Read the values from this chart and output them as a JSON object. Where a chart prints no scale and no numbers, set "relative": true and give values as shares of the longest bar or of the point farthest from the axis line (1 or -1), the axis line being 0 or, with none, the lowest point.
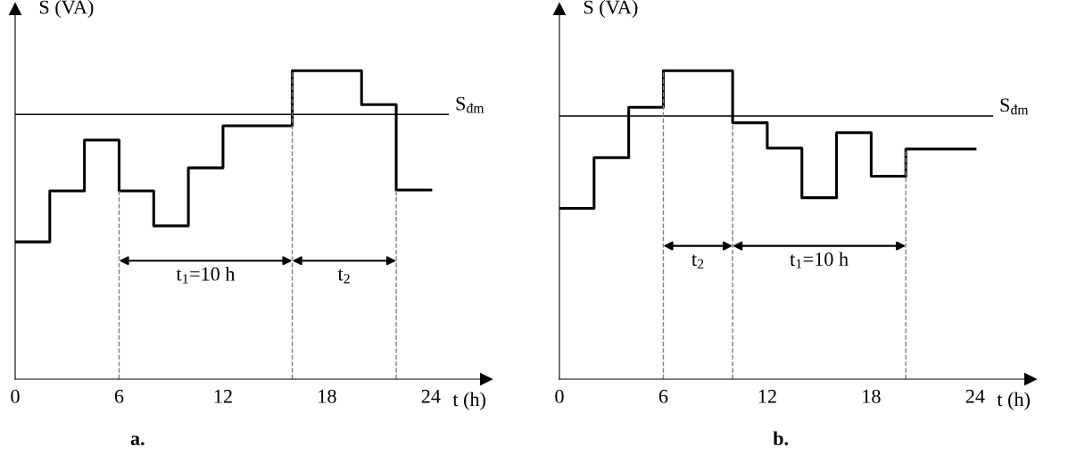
{
  "chart_data": [
    {
      "type": "step",
      "title": "a.",
      "xlabel": "t (h)",
      "ylabel": "S (VA)",
      "relative": true,
      "tick_labels": "x",
      "grid": false,
      "xlim": [
        0,
        27.2
      ],
      "xticks": [
        0,
        6,
        12,
        18,
        24
      ],
      "series": [
        {
          "color": "#000000",
          "x": [
            0,
            2,
            4,
            6,
            8,
            10,
            12,
            16,
            20,
            22,
            24
          ],
          "values": [
            0.445,
            0.61,
            0.775,
            0.61,
            0.497,
            0.685,
            0.821,
            1.0,
            0.89,
            0.613,
            0.613
          ]
        }
      ],
      "ref_lines": [
        {
          "axis": "y",
          "value": 0.858,
          "label": "S$_{đm}$",
          "color": "#000000",
          "line_style": "solid"
        },
        {
          "axis": "x",
          "value": 6,
          "color": "#808080",
          "line_style": "dashed"
        },
        {
          "axis": "x",
          "value": 16,
          "color": "#808080",
          "line_style": "dashed"
        },
        {
          "axis": "x",
          "value": 22,
          "color": "#808080",
          "line_style": "dashed"
        }
      ],
      "annotations": [
        "t$_{1}$=10 h",
        "t$_{2}$"
      ]
    },
    {
      "type": "step",
      "title": "b.",
      "xlabel": "t (h)",
      "ylabel": "S (VA)",
      "relative": true,
      "tick_labels": "x",
      "grid": false,
      "xlim": [
        0,
        27.2
      ],
      "xticks": [
        0,
        6,
        12,
        18,
        24
      ],
      "series": [
        {
          "color": "#000000",
          "x": [
            0,
            2,
            4,
            6,
            10,
            12,
            14,
            16,
            18,
            20,
            24
          ],
          "values": [
            0.554,
            0.718,
            0.881,
            1.0,
            0.831,
            0.749,
            0.588,
            0.799,
            0.658,
            0.746,
            0.746
          ]
        }
      ],
      "ref_lines": [
        {
          "axis": "y",
          "value": 0.853,
          "label": "S$_{đm}$",
          "color": "#000000",
          "line_style": "solid"
        },
        {
          "axis": "x",
          "value": 6,
          "color": "#808080",
          "line_style": "dashed"
        },
        {
          "axis": "x",
          "value": 10,
          "color": "#808080",
          "line_style": "dashed"
        },
        {
          "axis": "x",
          "value": 20,
          "color": "#808080",
          "line_style": "dashed"
        }
      ],
      "annotations": [
        "t$_{2}$",
        "t$_{1}$=10 h"
      ]
    }
  ]
}
